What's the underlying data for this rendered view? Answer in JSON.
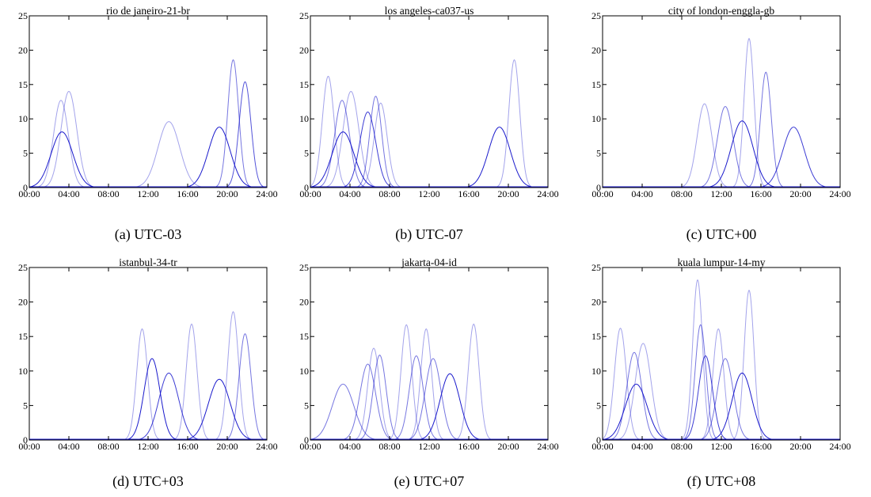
{
  "chart_data": [
    {
      "type": "line",
      "title": "rio de janeiro-21-br",
      "caption": "(a) UTC-03",
      "x_ticks": [
        "00:00",
        "04:00",
        "08:00",
        "12:00",
        "16:00",
        "20:00",
        "24:00"
      ],
      "y_ticks": [
        "0",
        "5",
        "10",
        "15",
        "20",
        "25"
      ],
      "xlim": [
        0,
        24
      ],
      "ylim": [
        0,
        25
      ],
      "series": [
        {
          "shape": "gaussian",
          "center": 3.2,
          "peak": 12.7,
          "width": 0.75,
          "shade": 0.4
        },
        {
          "shape": "gaussian",
          "center": 4.0,
          "peak": 14.0,
          "width": 0.8,
          "shade": 0.4
        },
        {
          "shape": "gaussian",
          "center": 3.3,
          "peak": 8.1,
          "width": 1.1,
          "shade": 1.0
        },
        {
          "shape": "gaussian",
          "center": 14.1,
          "peak": 9.6,
          "width": 1.1,
          "shade": 0.4
        },
        {
          "shape": "gaussian",
          "center": 19.2,
          "peak": 8.8,
          "width": 1.1,
          "shade": 1.0
        },
        {
          "shape": "gaussian",
          "center": 20.6,
          "peak": 18.6,
          "width": 0.55,
          "shade": 0.6
        },
        {
          "shape": "gaussian",
          "center": 21.8,
          "peak": 15.4,
          "width": 0.6,
          "shade": 0.75
        }
      ]
    },
    {
      "type": "line",
      "title": "los angeles-ca037-us",
      "caption": "(b) UTC-07",
      "x_ticks": [
        "00:00",
        "04:00",
        "08:00",
        "12:00",
        "16:00",
        "20:00",
        "24:00"
      ],
      "y_ticks": [
        "0",
        "5",
        "10",
        "15",
        "20",
        "25"
      ],
      "xlim": [
        0,
        24
      ],
      "ylim": [
        0,
        25
      ],
      "series": [
        {
          "shape": "gaussian",
          "center": 1.8,
          "peak": 16.2,
          "width": 0.6,
          "shade": 0.4
        },
        {
          "shape": "gaussian",
          "center": 3.2,
          "peak": 12.7,
          "width": 0.75,
          "shade": 0.6
        },
        {
          "shape": "gaussian",
          "center": 4.1,
          "peak": 14.0,
          "width": 0.8,
          "shade": 0.4
        },
        {
          "shape": "gaussian",
          "center": 3.3,
          "peak": 8.1,
          "width": 1.1,
          "shade": 1.0
        },
        {
          "shape": "gaussian",
          "center": 5.8,
          "peak": 11.0,
          "width": 0.8,
          "shade": 0.85
        },
        {
          "shape": "gaussian",
          "center": 6.6,
          "peak": 13.3,
          "width": 0.6,
          "shade": 0.6
        },
        {
          "shape": "gaussian",
          "center": 7.1,
          "peak": 12.3,
          "width": 0.65,
          "shade": 0.4
        },
        {
          "shape": "gaussian",
          "center": 19.1,
          "peak": 8.8,
          "width": 1.1,
          "shade": 1.0
        },
        {
          "shape": "gaussian",
          "center": 20.6,
          "peak": 18.6,
          "width": 0.55,
          "shade": 0.4
        }
      ]
    },
    {
      "type": "line",
      "title": "city of london-enggla-gb",
      "caption": "(c) UTC+00",
      "x_ticks": [
        "00:00",
        "04:00",
        "08:00",
        "12:00",
        "16:00",
        "20:00",
        "24:00"
      ],
      "y_ticks": [
        "0",
        "5",
        "10",
        "15",
        "20",
        "25"
      ],
      "xlim": [
        0,
        24
      ],
      "ylim": [
        0,
        25
      ],
      "series": [
        {
          "shape": "gaussian",
          "center": 10.3,
          "peak": 12.2,
          "width": 0.75,
          "shade": 0.4
        },
        {
          "shape": "gaussian",
          "center": 12.4,
          "peak": 11.8,
          "width": 0.8,
          "shade": 0.6
        },
        {
          "shape": "gaussian",
          "center": 14.1,
          "peak": 9.7,
          "width": 1.1,
          "shade": 1.0
        },
        {
          "shape": "gaussian",
          "center": 14.8,
          "peak": 21.7,
          "width": 0.5,
          "shade": 0.4
        },
        {
          "shape": "gaussian",
          "center": 16.5,
          "peak": 16.8,
          "width": 0.55,
          "shade": 0.6
        },
        {
          "shape": "gaussian",
          "center": 19.3,
          "peak": 8.8,
          "width": 1.1,
          "shade": 0.85
        }
      ]
    },
    {
      "type": "line",
      "title": "istanbul-34-tr",
      "caption": "(d) UTC+03",
      "x_ticks": [
        "00:00",
        "04:00",
        "08:00",
        "12:00",
        "16:00",
        "20:00",
        "24:00"
      ],
      "y_ticks": [
        "0",
        "5",
        "10",
        "15",
        "20",
        "25"
      ],
      "xlim": [
        0,
        24
      ],
      "ylim": [
        0,
        25
      ],
      "series": [
        {
          "shape": "gaussian",
          "center": 11.4,
          "peak": 16.1,
          "width": 0.55,
          "shade": 0.4
        },
        {
          "shape": "gaussian",
          "center": 12.4,
          "peak": 11.8,
          "width": 0.8,
          "shade": 1.0
        },
        {
          "shape": "gaussian",
          "center": 14.1,
          "peak": 9.7,
          "width": 1.0,
          "shade": 0.85
        },
        {
          "shape": "gaussian",
          "center": 16.4,
          "peak": 16.8,
          "width": 0.55,
          "shade": 0.4
        },
        {
          "shape": "gaussian",
          "center": 19.2,
          "peak": 8.8,
          "width": 1.1,
          "shade": 1.0
        },
        {
          "shape": "gaussian",
          "center": 20.6,
          "peak": 18.6,
          "width": 0.55,
          "shade": 0.4
        },
        {
          "shape": "gaussian",
          "center": 21.8,
          "peak": 15.4,
          "width": 0.6,
          "shade": 0.6
        }
      ]
    },
    {
      "type": "line",
      "title": "jakarta-04-id",
      "caption": "(e) UTC+07",
      "x_ticks": [
        "00:00",
        "04:00",
        "08:00",
        "12:00",
        "16:00",
        "20:00",
        "24:00"
      ],
      "y_ticks": [
        "0",
        "5",
        "10",
        "15",
        "20",
        "25"
      ],
      "xlim": [
        0,
        24
      ],
      "ylim": [
        0,
        25
      ],
      "series": [
        {
          "shape": "gaussian",
          "center": 3.3,
          "peak": 8.1,
          "width": 1.1,
          "shade": 0.6
        },
        {
          "shape": "gaussian",
          "center": 5.8,
          "peak": 11.0,
          "width": 0.8,
          "shade": 0.6
        },
        {
          "shape": "gaussian",
          "center": 6.4,
          "peak": 13.3,
          "width": 0.6,
          "shade": 0.4
        },
        {
          "shape": "gaussian",
          "center": 7.0,
          "peak": 12.3,
          "width": 0.65,
          "shade": 0.6
        },
        {
          "shape": "gaussian",
          "center": 9.7,
          "peak": 16.7,
          "width": 0.55,
          "shade": 0.4
        },
        {
          "shape": "gaussian",
          "center": 10.7,
          "peak": 12.2,
          "width": 0.7,
          "shade": 0.6
        },
        {
          "shape": "gaussian",
          "center": 11.7,
          "peak": 16.1,
          "width": 0.55,
          "shade": 0.4
        },
        {
          "shape": "gaussian",
          "center": 12.4,
          "peak": 11.8,
          "width": 0.8,
          "shade": 0.6
        },
        {
          "shape": "gaussian",
          "center": 14.1,
          "peak": 9.6,
          "width": 1.0,
          "shade": 1.0
        },
        {
          "shape": "gaussian",
          "center": 16.5,
          "peak": 16.8,
          "width": 0.55,
          "shade": 0.4
        }
      ]
    },
    {
      "type": "line",
      "title": "kuala lumpur-14-my",
      "caption": "(f) UTC+08",
      "x_ticks": [
        "00:00",
        "04:00",
        "08:00",
        "12:00",
        "16:00",
        "20:00",
        "24:00"
      ],
      "y_ticks": [
        "0",
        "5",
        "10",
        "15",
        "20",
        "25"
      ],
      "xlim": [
        0,
        24
      ],
      "ylim": [
        0,
        25
      ],
      "series": [
        {
          "shape": "gaussian",
          "center": 1.8,
          "peak": 16.2,
          "width": 0.6,
          "shade": 0.4
        },
        {
          "shape": "gaussian",
          "center": 3.2,
          "peak": 12.7,
          "width": 0.75,
          "shade": 0.6
        },
        {
          "shape": "gaussian",
          "center": 4.1,
          "peak": 14.0,
          "width": 0.8,
          "shade": 0.4
        },
        {
          "shape": "gaussian",
          "center": 3.4,
          "peak": 8.1,
          "width": 1.1,
          "shade": 1.0
        },
        {
          "shape": "gaussian",
          "center": 9.6,
          "peak": 23.2,
          "width": 0.5,
          "shade": 0.4
        },
        {
          "shape": "gaussian",
          "center": 9.9,
          "peak": 16.7,
          "width": 0.55,
          "shade": 0.6
        },
        {
          "shape": "gaussian",
          "center": 10.4,
          "peak": 12.2,
          "width": 0.7,
          "shade": 0.85
        },
        {
          "shape": "gaussian",
          "center": 11.7,
          "peak": 16.1,
          "width": 0.55,
          "shade": 0.4
        },
        {
          "shape": "gaussian",
          "center": 12.4,
          "peak": 11.8,
          "width": 0.8,
          "shade": 0.6
        },
        {
          "shape": "gaussian",
          "center": 14.1,
          "peak": 9.7,
          "width": 1.0,
          "shade": 1.0
        },
        {
          "shape": "gaussian",
          "center": 14.8,
          "peak": 21.7,
          "width": 0.5,
          "shade": 0.4
        }
      ]
    }
  ],
  "colors": {
    "line": "#1a1acc",
    "baseline": "#1a1acc",
    "axis": "#000000"
  }
}
